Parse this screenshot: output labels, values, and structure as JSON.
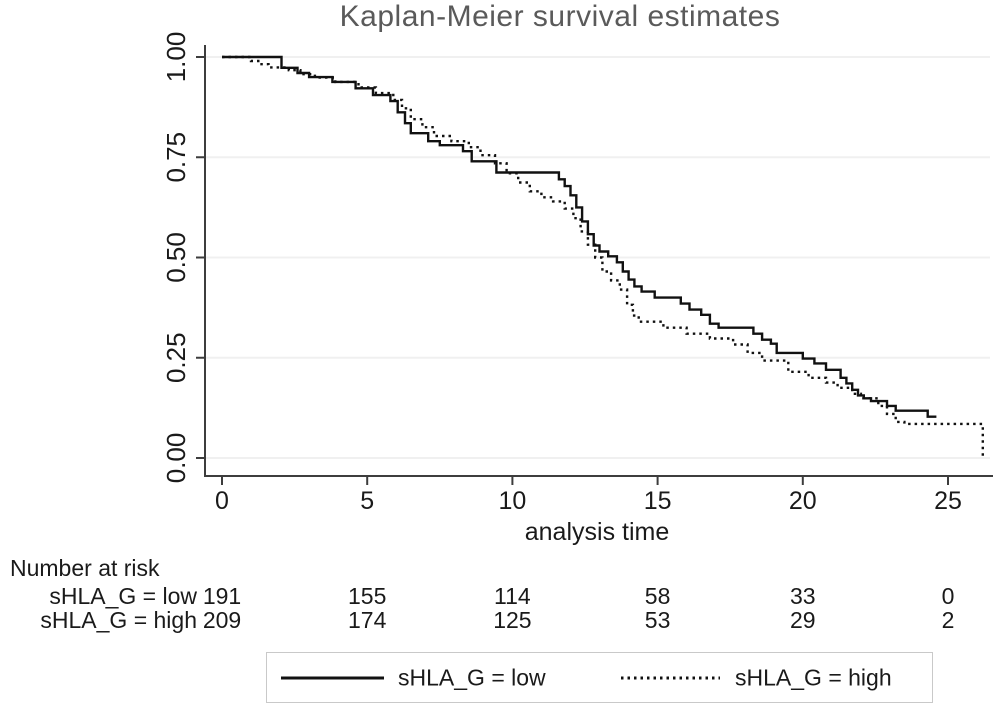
{
  "title": "Kaplan-Meier survival estimates",
  "axes": {
    "xlabel": "analysis time",
    "xticks": [
      0,
      5,
      10,
      15,
      20,
      25
    ],
    "yticks": [
      {
        "label": "0.00",
        "value": 0.0
      },
      {
        "label": "0.25",
        "value": 0.25
      },
      {
        "label": "0.50",
        "value": 0.5
      },
      {
        "label": "0.75",
        "value": 0.75
      },
      {
        "label": "1.00",
        "value": 1.0
      }
    ]
  },
  "risk_table": {
    "header": "Number at risk",
    "rows": [
      {
        "label": "sHLA_G = low",
        "counts": [
          "191",
          "155",
          "114",
          "58",
          "33",
          "0"
        ]
      },
      {
        "label": "sHLA_G = high",
        "counts": [
          "209",
          "174",
          "125",
          "53",
          "29",
          "2"
        ]
      }
    ]
  },
  "legend": {
    "items": [
      {
        "label": "sHLA_G = low",
        "style": "solid"
      },
      {
        "label": "sHLA_G = high",
        "style": "dotted"
      }
    ]
  },
  "colors": {
    "curve": "#111111",
    "grid": "#f0f0f0",
    "axis": "#3d3d3d",
    "title": "#5a5a5a",
    "legend_border": "#c9c9c9"
  },
  "chart_data": {
    "type": "line",
    "subtype": "kaplan-meier-step",
    "title": "Kaplan-Meier survival estimates",
    "xlabel": "analysis time",
    "ylabel": "",
    "xlim": [
      0,
      26.5
    ],
    "ylim": [
      0,
      1
    ],
    "grid": "horizontal",
    "legend_position": "bottom",
    "series": [
      {
        "name": "sHLA_G = low",
        "line": "solid",
        "start": [
          0,
          1.0
        ],
        "end_time": 24.6,
        "points": [
          [
            2.05,
            0.973
          ],
          [
            2.6,
            0.96
          ],
          [
            3.0,
            0.95
          ],
          [
            3.8,
            0.938
          ],
          [
            4.6,
            0.922
          ],
          [
            5.2,
            0.905
          ],
          [
            5.8,
            0.89
          ],
          [
            6.05,
            0.862
          ],
          [
            6.3,
            0.835
          ],
          [
            6.5,
            0.81
          ],
          [
            7.1,
            0.79
          ],
          [
            7.5,
            0.78
          ],
          [
            8.3,
            0.765
          ],
          [
            8.6,
            0.74
          ],
          [
            9.45,
            0.712
          ],
          [
            11.6,
            0.695
          ],
          [
            11.8,
            0.678
          ],
          [
            12.0,
            0.655
          ],
          [
            12.2,
            0.625
          ],
          [
            12.4,
            0.59
          ],
          [
            12.6,
            0.558
          ],
          [
            12.8,
            0.53
          ],
          [
            13.0,
            0.515
          ],
          [
            13.3,
            0.503
          ],
          [
            13.6,
            0.488
          ],
          [
            13.8,
            0.465
          ],
          [
            14.0,
            0.445
          ],
          [
            14.2,
            0.428
          ],
          [
            14.45,
            0.415
          ],
          [
            14.9,
            0.4
          ],
          [
            15.8,
            0.385
          ],
          [
            16.1,
            0.37
          ],
          [
            16.5,
            0.357
          ],
          [
            16.8,
            0.335
          ],
          [
            17.1,
            0.325
          ],
          [
            18.3,
            0.31
          ],
          [
            18.6,
            0.295
          ],
          [
            18.9,
            0.285
          ],
          [
            19.1,
            0.262
          ],
          [
            20.0,
            0.248
          ],
          [
            20.4,
            0.236
          ],
          [
            20.8,
            0.22
          ],
          [
            21.3,
            0.2
          ],
          [
            21.5,
            0.186
          ],
          [
            21.7,
            0.17
          ],
          [
            21.9,
            0.156
          ],
          [
            22.1,
            0.149
          ],
          [
            22.35,
            0.142
          ],
          [
            22.9,
            0.13
          ],
          [
            23.2,
            0.118
          ],
          [
            24.3,
            0.103
          ]
        ]
      },
      {
        "name": "sHLA_G = high",
        "line": "dotted",
        "start": [
          0,
          1.0
        ],
        "end_time": 26.2,
        "points": [
          [
            1.0,
            0.99
          ],
          [
            1.3,
            0.982
          ],
          [
            1.6,
            0.974
          ],
          [
            2.3,
            0.967
          ],
          [
            2.7,
            0.957
          ],
          [
            3.2,
            0.949
          ],
          [
            3.9,
            0.938
          ],
          [
            4.7,
            0.924
          ],
          [
            5.3,
            0.91
          ],
          [
            5.9,
            0.893
          ],
          [
            6.2,
            0.872
          ],
          [
            6.5,
            0.845
          ],
          [
            6.9,
            0.825
          ],
          [
            7.3,
            0.803
          ],
          [
            7.9,
            0.79
          ],
          [
            8.5,
            0.775
          ],
          [
            8.9,
            0.755
          ],
          [
            9.4,
            0.735
          ],
          [
            9.8,
            0.71
          ],
          [
            10.2,
            0.687
          ],
          [
            10.6,
            0.665
          ],
          [
            11.0,
            0.65
          ],
          [
            11.4,
            0.64
          ],
          [
            11.8,
            0.622
          ],
          [
            12.1,
            0.598
          ],
          [
            12.35,
            0.565
          ],
          [
            12.6,
            0.532
          ],
          [
            12.85,
            0.5
          ],
          [
            13.1,
            0.465
          ],
          [
            13.4,
            0.443
          ],
          [
            13.7,
            0.42
          ],
          [
            13.95,
            0.382
          ],
          [
            14.15,
            0.355
          ],
          [
            14.35,
            0.34
          ],
          [
            15.2,
            0.325
          ],
          [
            16.0,
            0.31
          ],
          [
            16.8,
            0.298
          ],
          [
            17.6,
            0.283
          ],
          [
            18.1,
            0.262
          ],
          [
            18.6,
            0.243
          ],
          [
            19.5,
            0.215
          ],
          [
            20.2,
            0.2
          ],
          [
            20.8,
            0.188
          ],
          [
            21.2,
            0.175
          ],
          [
            21.7,
            0.16
          ],
          [
            22.0,
            0.149
          ],
          [
            22.6,
            0.13
          ],
          [
            22.9,
            0.11
          ],
          [
            23.2,
            0.09
          ],
          [
            23.5,
            0.085
          ],
          [
            26.2,
            0.0
          ]
        ]
      }
    ]
  }
}
